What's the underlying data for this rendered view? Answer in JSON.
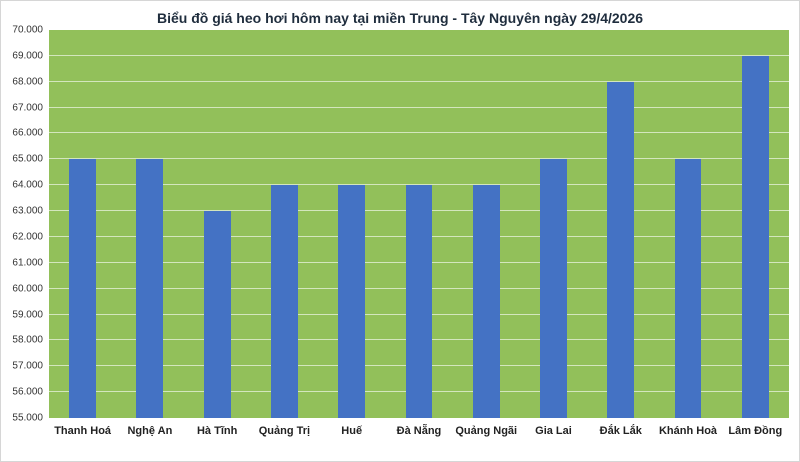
{
  "chart_data": {
    "type": "bar",
    "title": "Biểu đồ giá heo hơi hôm nay tại miền Trung - Tây Nguyên ngày 29/4/2026",
    "categories": [
      "Thanh Hoá",
      "Nghệ An",
      "Hà Tĩnh",
      "Quảng Trị",
      "Huế",
      "Đà Nẵng",
      "Quảng Ngãi",
      "Gia Lai",
      "Đắk Lắk",
      "Khánh Hoà",
      "Lâm Đồng"
    ],
    "values": [
      65000,
      65000,
      63000,
      64000,
      64000,
      64000,
      64000,
      65000,
      68000,
      65000,
      69000
    ],
    "xlabel": "",
    "ylabel": "",
    "ylim": [
      55000,
      70000
    ],
    "ytick_step": 1000,
    "ytick_labels": [
      "55.000",
      "56.000",
      "57.000",
      "58.000",
      "59.000",
      "60.000",
      "61.000",
      "62.000",
      "63.000",
      "64.000",
      "65.000",
      "66.000",
      "67.000",
      "68.000",
      "69.000",
      "70.000"
    ],
    "grid": true,
    "legend": "none",
    "colors": {
      "bar": "#4472c4",
      "plot_bg": "#92c05a",
      "grid": "rgba(255,255,255,0.6)",
      "title_text": "#1f2d3d",
      "axis_text": "#333333",
      "category_text": "#222222"
    }
  }
}
